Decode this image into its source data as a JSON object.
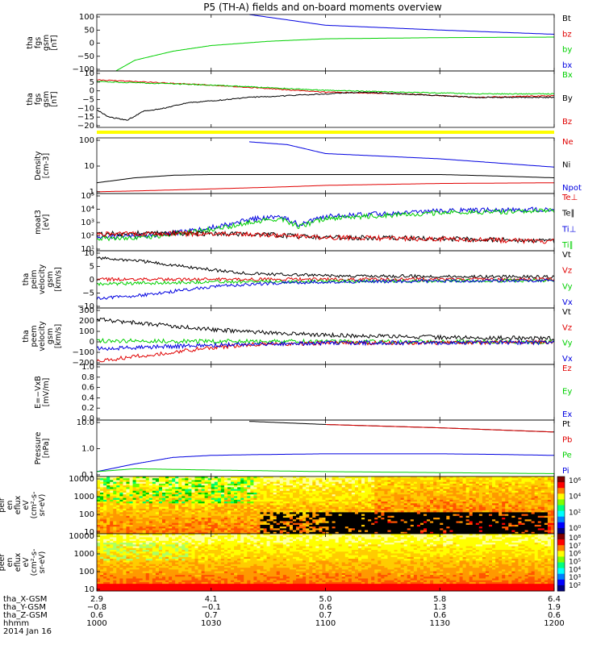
{
  "title": "P5 (TH-A) fields and on-board moments overview",
  "colors": {
    "black": "#000000",
    "red": "#e00000",
    "green": "#00d000",
    "blue": "#0000e0",
    "yellow": "#ffff00"
  },
  "chart_data": [
    {
      "type": "line",
      "ylabel": [
        "tha",
        "fgs",
        "gsm",
        "[nT]"
      ],
      "ylim": [
        -100,
        100
      ],
      "yticks": [
        "100",
        "50",
        "0",
        "−50",
        "−100"
      ],
      "legend": [
        {
          "name": "Bt",
          "color": "black"
        },
        {
          "name": "bz",
          "color": "red"
        },
        {
          "name": "by",
          "color": "green"
        },
        {
          "name": "bx",
          "color": "blue"
        }
      ],
      "series": [
        {
          "name": "bx",
          "color": "blue",
          "x": [
            1040,
            1100,
            1130,
            1200
          ],
          "y": [
            100,
            62,
            45,
            30
          ]
        },
        {
          "name": "by",
          "color": "green",
          "x": [
            1005,
            1010,
            1020,
            1030,
            1045,
            1100,
            1130,
            1200
          ],
          "y": [
            -100,
            -62,
            -30,
            -10,
            5,
            14,
            18,
            20
          ]
        }
      ]
    },
    {
      "type": "line",
      "ylabel": [
        "tha",
        "fgs",
        "gsm",
        "[nT]"
      ],
      "ylim": [
        -22,
        10
      ],
      "yticks": [
        "10",
        "5",
        "0",
        "−5",
        "−10",
        "−15",
        "−20"
      ],
      "legend": [
        {
          "name": "Bx",
          "color": "green"
        },
        {
          "name": "By",
          "color": "black"
        },
        {
          "name": "Bz",
          "color": "red"
        }
      ],
      "series": [
        {
          "name": "Bz",
          "color": "red",
          "x": [
            1000,
            1010,
            1030,
            1100,
            1120,
            1140,
            1200
          ],
          "y": [
            5,
            4,
            2,
            -2,
            -3,
            -5,
            -4
          ]
        },
        {
          "name": "Bx",
          "color": "green",
          "x": [
            1000,
            1030,
            1100,
            1140,
            1200
          ],
          "y": [
            4,
            2,
            -1,
            -3,
            -3
          ]
        },
        {
          "name": "By",
          "color": "black",
          "x": [
            1000,
            1003,
            1008,
            1012,
            1018,
            1024,
            1030,
            1040,
            1050,
            1100,
            1110,
            1120,
            1130,
            1140,
            1200
          ],
          "y": [
            -12,
            -16,
            -18,
            -13,
            -11,
            -8,
            -7,
            -5,
            -4,
            -3,
            -2,
            -3,
            -4,
            -5,
            -5
          ]
        }
      ],
      "flag_bar_color": "yellow"
    },
    {
      "type": "line",
      "ylabel": [
        "Density",
        "[cm-3]"
      ],
      "scale": "log",
      "ylim": [
        1,
        300
      ],
      "yticks": [
        "100",
        "10",
        "1"
      ],
      "legend": [
        {
          "name": "Ne",
          "color": "red"
        },
        {
          "name": "Ni",
          "color": "black"
        },
        {
          "name": "Npot",
          "color": "blue"
        }
      ],
      "series": [
        {
          "name": "Npot",
          "color": "blue",
          "x": [
            1040,
            1050,
            1100,
            1130,
            1200
          ],
          "y": [
            200,
            150,
            60,
            35,
            15
          ]
        },
        {
          "name": "Ni",
          "color": "black",
          "x": [
            1000,
            1010,
            1020,
            1030,
            1100,
            1130,
            1145,
            1200
          ],
          "y": [
            3,
            5,
            6.5,
            7,
            7,
            7,
            6,
            5
          ]
        },
        {
          "name": "Ne",
          "color": "red",
          "x": [
            1000,
            1010,
            1030,
            1050,
            1100,
            1130,
            1200
          ],
          "y": [
            1.2,
            1.3,
            1.6,
            2,
            2.3,
            2.8,
            3
          ]
        }
      ]
    },
    {
      "type": "line",
      "ylabel": [
        "moat3",
        "[eV]"
      ],
      "scale": "log",
      "ylim": [
        10,
        100000
      ],
      "yticks": [
        "10⁵",
        "10⁴",
        "10³",
        "10²",
        "10¹"
      ],
      "legend": [
        {
          "name": "Te⊥",
          "color": "red"
        },
        {
          "name": "Te∥",
          "color": "black"
        },
        {
          "name": "Ti⊥",
          "color": "blue"
        },
        {
          "name": "Ti∥",
          "color": "green"
        }
      ],
      "series": [
        {
          "name": "Ti⊥",
          "color": "blue",
          "x": [
            1000,
            1015,
            1025,
            1035,
            1040,
            1048,
            1053,
            1100,
            1130,
            1200
          ],
          "y": [
            90,
            120,
            250,
            700,
            1500,
            2500,
            700,
            2500,
            6000,
            8000
          ]
        },
        {
          "name": "Ti∥",
          "color": "green",
          "x": [
            1000,
            1015,
            1025,
            1035,
            1040,
            1048,
            1053,
            1100,
            1130,
            1200
          ],
          "y": [
            70,
            100,
            200,
            500,
            1000,
            1800,
            500,
            1800,
            4500,
            6000
          ]
        },
        {
          "name": "Te∥",
          "color": "black",
          "x": [
            1000,
            1020,
            1040,
            1100,
            1130,
            1200
          ],
          "y": [
            150,
            170,
            150,
            90,
            70,
            50
          ]
        },
        {
          "name": "Te⊥",
          "color": "red",
          "x": [
            1000,
            1020,
            1040,
            1100,
            1130,
            1200
          ],
          "y": [
            140,
            160,
            140,
            85,
            65,
            45
          ]
        }
      ]
    },
    {
      "type": "line",
      "ylabel": [
        "tha",
        "peim",
        "velocity",
        "gsm",
        "[km/s]"
      ],
      "ylim": [
        -12,
        12
      ],
      "yticks": [
        "10",
        "5",
        "0",
        "−5",
        "−10"
      ],
      "legend": [
        {
          "name": "Vt",
          "color": "black"
        },
        {
          "name": "Vz",
          "color": "red"
        },
        {
          "name": "Vy",
          "color": "green"
        },
        {
          "name": "Vx",
          "color": "blue"
        }
      ],
      "series": [
        {
          "name": "Vt",
          "color": "black",
          "x": [
            1000,
            1010,
            1020,
            1030,
            1040,
            1100,
            1200
          ],
          "y": [
            9,
            8,
            6,
            4,
            2.5,
            1.5,
            1
          ]
        },
        {
          "name": "Vz",
          "color": "red",
          "x": [
            1000,
            1030,
            1200
          ],
          "y": [
            0,
            0,
            0
          ]
        },
        {
          "name": "Vy",
          "color": "green",
          "x": [
            1000,
            1030,
            1200
          ],
          "y": [
            -2,
            -1,
            -0.5
          ]
        },
        {
          "name": "Vx",
          "color": "blue",
          "x": [
            1000,
            1010,
            1020,
            1030,
            1040,
            1100,
            1200
          ],
          "y": [
            -8,
            -7,
            -5,
            -3,
            -2,
            -1,
            -0.5
          ]
        }
      ]
    },
    {
      "type": "line",
      "ylabel": [
        "tha",
        "peem",
        "velocity",
        "gsm",
        "[km/s]"
      ],
      "ylim": [
        -200,
        300
      ],
      "yticks": [
        "300",
        "200",
        "100",
        "0",
        "−100",
        "−200"
      ],
      "legend": [
        {
          "name": "Vt",
          "color": "black"
        },
        {
          "name": "Vz",
          "color": "red"
        },
        {
          "name": "Vy",
          "color": "green"
        },
        {
          "name": "Vx",
          "color": "blue"
        }
      ],
      "series": [
        {
          "name": "Vt",
          "color": "black",
          "x": [
            1000,
            1010,
            1020,
            1030,
            1040,
            1100,
            1130,
            1200
          ],
          "y": [
            200,
            170,
            140,
            110,
            90,
            60,
            40,
            30
          ]
        },
        {
          "name": "Vy",
          "color": "green",
          "x": [
            1000,
            1030,
            1100,
            1200
          ],
          "y": [
            10,
            5,
            2,
            0
          ]
        },
        {
          "name": "Vz",
          "color": "red",
          "x": [
            1000,
            1010,
            1020,
            1030,
            1040,
            1100,
            1200
          ],
          "y": [
            -170,
            -130,
            -90,
            -50,
            -25,
            -10,
            -5
          ]
        },
        {
          "name": "Vx",
          "color": "blue",
          "x": [
            1000,
            1010,
            1020,
            1030,
            1040,
            1100,
            1200
          ],
          "y": [
            -60,
            -50,
            -40,
            -30,
            -20,
            -10,
            -5
          ]
        }
      ]
    },
    {
      "type": "line",
      "ylabel": [
        "E=−VxB",
        "[mV/m]"
      ],
      "ylim": [
        0,
        1
      ],
      "yticks": [
        "1.0",
        "0.8",
        "0.6",
        "0.4",
        "0.2",
        "0.0"
      ],
      "legend": [
        {
          "name": "Ez",
          "color": "red"
        },
        {
          "name": "Ey",
          "color": "green"
        },
        {
          "name": "Ex",
          "color": "blue"
        }
      ],
      "series": []
    },
    {
      "type": "line",
      "ylabel": [
        "Pressure",
        "[nPa]"
      ],
      "scale": "log",
      "ylim": [
        0.01,
        30
      ],
      "yticks": [
        "10.0",
        "1.0",
        "0.1"
      ],
      "legend": [
        {
          "name": "Pt",
          "color": "black"
        },
        {
          "name": "Pb",
          "color": "red"
        },
        {
          "name": "Pe",
          "color": "green"
        },
        {
          "name": "Pi",
          "color": "blue"
        }
      ],
      "series": [
        {
          "name": "Pt",
          "color": "black",
          "x": [
            1040,
            1100,
            1130,
            1200
          ],
          "y": [
            25,
            16,
            10,
            5.5
          ]
        },
        {
          "name": "Pb",
          "color": "red",
          "x": [
            1100,
            1130,
            1200
          ],
          "y": [
            16,
            10,
            5.5
          ]
        },
        {
          "name": "Pi",
          "color": "blue",
          "x": [
            1000,
            1010,
            1020,
            1030,
            1040,
            1100,
            1130,
            1145,
            1200
          ],
          "y": [
            0.02,
            0.06,
            0.15,
            0.2,
            0.22,
            0.25,
            0.25,
            0.23,
            0.2
          ]
        },
        {
          "name": "Pe",
          "color": "green",
          "x": [
            1000,
            1010,
            1030,
            1100,
            1200
          ],
          "y": [
            0.02,
            0.03,
            0.025,
            0.02,
            0.015
          ]
        }
      ]
    },
    {
      "type": "heatmap",
      "ylabel": [
        "tha",
        "peir",
        "en",
        "eflux",
        "eV",
        "(cm²-s-",
        "sr-eV)"
      ],
      "scale": "log",
      "ylim": [
        5,
        20000
      ],
      "yticks": [
        "10000",
        "1000",
        "100",
        "10"
      ],
      "colorbar": {
        "ticks": [
          "10⁶",
          "10⁴",
          "10²",
          "10⁰"
        ]
      }
    },
    {
      "type": "heatmap",
      "ylabel": [
        "tha",
        "peer",
        "en",
        "eflux",
        "eV",
        "(cm²-s-",
        "sr-eV)"
      ],
      "scale": "log",
      "ylim": [
        5,
        20000
      ],
      "yticks": [
        "10000",
        "1000",
        "100",
        "10"
      ],
      "colorbar": {
        "ticks": [
          "10⁸",
          "10⁷",
          "10⁶",
          "10⁵",
          "10⁴",
          "10³",
          "10²"
        ]
      }
    }
  ],
  "xaxis": {
    "tick_minutes": [
      0,
      30,
      60,
      90,
      120
    ],
    "rows": [
      {
        "label": "tha_X-GSM",
        "values": [
          "2.9",
          "4.1",
          "5.0",
          "5.8",
          "6.4"
        ]
      },
      {
        "label": "tha_Y-GSM",
        "values": [
          "−0.8",
          "−0.1",
          "0.6",
          "1.3",
          "1.9"
        ]
      },
      {
        "label": "tha_Z-GSM",
        "values": [
          "0.6",
          "0.7",
          "0.7",
          "0.6",
          "0.6"
        ]
      },
      {
        "label": "hhmm",
        "values": [
          "1000",
          "1030",
          "1100",
          "1130",
          "1200"
        ]
      }
    ],
    "date": "2014 Jan 16"
  }
}
